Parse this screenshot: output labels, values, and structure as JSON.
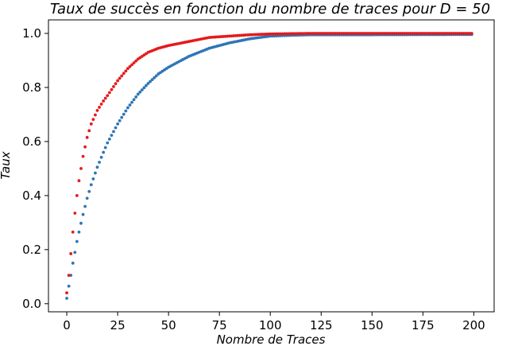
{
  "chart_data": {
    "type": "scatter",
    "title": "Taux de succès en fonction du nombre de traces pour D  =  50",
    "xlabel": "Nombre de Traces",
    "ylabel": "Taux",
    "xlim": [
      -9,
      210
    ],
    "ylim": [
      -0.03,
      1.05
    ],
    "x_ticks": [
      0,
      25,
      50,
      75,
      100,
      125,
      150,
      175,
      200
    ],
    "y_ticks": [
      0.0,
      0.2,
      0.4,
      0.6,
      0.8,
      1.0
    ],
    "y_tick_labels": [
      "0.0",
      "0.2",
      "0.4",
      "0.6",
      "0.8",
      "1.0"
    ],
    "grid": false,
    "x": {
      "start": 0,
      "end": 199,
      "step": 1
    },
    "series": [
      {
        "color": "#e41a1c",
        "anchors": [
          [
            0,
            0.04
          ],
          [
            1,
            0.105
          ],
          [
            2,
            0.185
          ],
          [
            3,
            0.265
          ],
          [
            4,
            0.335
          ],
          [
            5,
            0.4
          ],
          [
            6,
            0.455
          ],
          [
            7,
            0.5
          ],
          [
            8,
            0.545
          ],
          [
            9,
            0.58
          ],
          [
            10,
            0.615
          ],
          [
            12,
            0.665
          ],
          [
            15,
            0.715
          ],
          [
            18,
            0.75
          ],
          [
            20,
            0.77
          ],
          [
            25,
            0.825
          ],
          [
            30,
            0.87
          ],
          [
            35,
            0.905
          ],
          [
            40,
            0.93
          ],
          [
            45,
            0.945
          ],
          [
            50,
            0.955
          ],
          [
            60,
            0.97
          ],
          [
            70,
            0.985
          ],
          [
            80,
            0.99
          ],
          [
            90,
            0.995
          ],
          [
            100,
            0.998
          ],
          [
            120,
            1.0
          ],
          [
            199,
            1.0
          ]
        ]
      },
      {
        "color": "#2e75b6",
        "anchors": [
          [
            0,
            0.02
          ],
          [
            1,
            0.065
          ],
          [
            2,
            0.105
          ],
          [
            3,
            0.15
          ],
          [
            4,
            0.19
          ],
          [
            5,
            0.23
          ],
          [
            6,
            0.265
          ],
          [
            8,
            0.33
          ],
          [
            10,
            0.39
          ],
          [
            12,
            0.44
          ],
          [
            15,
            0.505
          ],
          [
            18,
            0.56
          ],
          [
            20,
            0.595
          ],
          [
            25,
            0.665
          ],
          [
            30,
            0.725
          ],
          [
            35,
            0.775
          ],
          [
            40,
            0.815
          ],
          [
            45,
            0.85
          ],
          [
            50,
            0.875
          ],
          [
            60,
            0.915
          ],
          [
            70,
            0.945
          ],
          [
            80,
            0.965
          ],
          [
            90,
            0.98
          ],
          [
            100,
            0.99
          ],
          [
            110,
            0.993
          ],
          [
            120,
            0.995
          ],
          [
            150,
            0.995
          ],
          [
            199,
            0.996
          ]
        ]
      }
    ]
  }
}
